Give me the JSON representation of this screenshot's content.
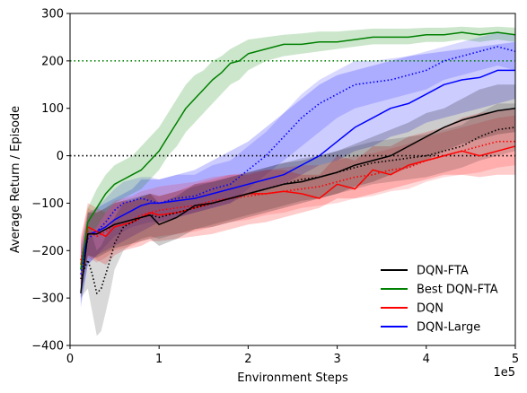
{
  "chart_data": {
    "type": "line",
    "title": "",
    "xlabel": "Environment Steps",
    "ylabel": "Average Return / Episode",
    "x_multiplier_label": "1e5",
    "xlim": [
      0,
      5
    ],
    "ylim": [
      -400,
      300
    ],
    "x_ticks": [
      0,
      1,
      2,
      3,
      4,
      5
    ],
    "x_tick_labels": [
      "0",
      "1",
      "2",
      "3",
      "4",
      "5"
    ],
    "y_ticks": [
      -400,
      -300,
      -200,
      -100,
      0,
      100,
      200,
      300
    ],
    "y_tick_labels": [
      "−400",
      "−300",
      "−200",
      "−100",
      "0",
      "100",
      "200",
      "300"
    ],
    "grid": false,
    "legend_position": "lower-right",
    "reference_lines": [
      {
        "y": 200,
        "color": "#008000",
        "style": "dotted"
      },
      {
        "y": 0,
        "color": "#000000",
        "style": "dotted"
      }
    ],
    "series": [
      {
        "name": "DQN-Large",
        "color": "#0000ff",
        "style": "solid",
        "band_opacity": 0.2,
        "in_legend": true,
        "x": [
          0.12,
          0.2,
          0.3,
          0.4,
          0.5,
          0.6,
          0.7,
          0.8,
          0.9,
          1.0,
          1.2,
          1.4,
          1.6,
          1.8,
          2.0,
          2.2,
          2.4,
          2.6,
          2.8,
          3.0,
          3.2,
          3.4,
          3.6,
          3.8,
          4.0,
          4.2,
          4.4,
          4.6,
          4.8,
          5.0
        ],
        "y": [
          -240,
          -165,
          -160,
          -150,
          -135,
          -125,
          -115,
          -105,
          -100,
          -100,
          -95,
          -90,
          -80,
          -70,
          -60,
          -50,
          -40,
          -20,
          0,
          30,
          60,
          80,
          100,
          110,
          130,
          150,
          160,
          165,
          180,
          180
        ],
        "lower": [
          -320,
          -230,
          -210,
          -200,
          -190,
          -180,
          -170,
          -160,
          -150,
          -140,
          -130,
          -120,
          -110,
          -100,
          -80,
          -70,
          -60,
          -40,
          -20,
          -10,
          10,
          20,
          40,
          50,
          70,
          80,
          90,
          100,
          110,
          120
        ],
        "upper": [
          -190,
          -120,
          -110,
          -100,
          -90,
          -80,
          -70,
          -50,
          -50,
          -50,
          -40,
          -30,
          -10,
          10,
          30,
          60,
          90,
          120,
          150,
          170,
          180,
          190,
          200,
          210,
          215,
          220,
          225,
          230,
          235,
          240
        ]
      },
      {
        "name": "",
        "color": "#0000ff",
        "style": "dotted",
        "band_opacity": 0.15,
        "in_legend": false,
        "x": [
          0.12,
          0.2,
          0.3,
          0.4,
          0.5,
          0.6,
          0.7,
          0.8,
          0.9,
          1.0,
          1.2,
          1.4,
          1.6,
          1.8,
          2.0,
          2.2,
          2.4,
          2.6,
          2.8,
          3.0,
          3.2,
          3.4,
          3.6,
          3.8,
          4.0,
          4.2,
          4.4,
          4.6,
          4.8,
          5.0
        ],
        "y": [
          -250,
          -175,
          -160,
          -140,
          -115,
          -100,
          -95,
          -90,
          -95,
          -100,
          -90,
          -85,
          -70,
          -60,
          -30,
          0,
          40,
          80,
          110,
          130,
          150,
          155,
          160,
          170,
          180,
          200,
          210,
          220,
          230,
          220
        ],
        "lower": [
          -310,
          -230,
          -210,
          -190,
          -170,
          -160,
          -150,
          -145,
          -140,
          -140,
          -130,
          -120,
          -110,
          -100,
          -70,
          -40,
          -10,
          20,
          50,
          80,
          100,
          110,
          120,
          130,
          140,
          160,
          170,
          180,
          190,
          180
        ],
        "upper": [
          -200,
          -130,
          -110,
          -90,
          -70,
          -55,
          -50,
          -45,
          -45,
          -50,
          -40,
          -40,
          -20,
          -10,
          20,
          50,
          90,
          130,
          160,
          180,
          200,
          200,
          205,
          210,
          220,
          230,
          240,
          250,
          260,
          255
        ]
      },
      {
        "name": "DQN",
        "color": "#ff0000",
        "style": "solid",
        "band_opacity": 0.2,
        "in_legend": true,
        "x": [
          0.12,
          0.2,
          0.3,
          0.4,
          0.5,
          0.6,
          0.7,
          0.8,
          0.9,
          1.0,
          1.2,
          1.4,
          1.6,
          1.8,
          2.0,
          2.2,
          2.4,
          2.6,
          2.8,
          3.0,
          3.2,
          3.4,
          3.6,
          3.8,
          4.0,
          4.2,
          4.4,
          4.6,
          4.8,
          5.0
        ],
        "y": [
          -230,
          -150,
          -160,
          -170,
          -150,
          -145,
          -140,
          -130,
          -120,
          -125,
          -120,
          -110,
          -100,
          -90,
          -80,
          -80,
          -75,
          -80,
          -90,
          -60,
          -70,
          -30,
          -40,
          -20,
          -10,
          0,
          10,
          0,
          10,
          20
        ],
        "lower": [
          -280,
          -210,
          -220,
          -230,
          -210,
          -200,
          -195,
          -190,
          -180,
          -180,
          -175,
          -170,
          -165,
          -155,
          -145,
          -140,
          -130,
          -120,
          -110,
          -90,
          -90,
          -80,
          -70,
          -60,
          -50,
          -40,
          -40,
          -45,
          -40,
          -40
        ],
        "upper": [
          -180,
          -100,
          -110,
          -120,
          -100,
          -95,
          -95,
          -90,
          -80,
          -85,
          -75,
          -60,
          -50,
          -40,
          -40,
          -30,
          -30,
          -40,
          -40,
          0,
          -10,
          20,
          20,
          40,
          50,
          60,
          80,
          90,
          95,
          100
        ]
      },
      {
        "name": "",
        "color": "#ff0000",
        "style": "dotted",
        "band_opacity": 0.15,
        "in_legend": false,
        "x": [
          0.12,
          0.2,
          0.3,
          0.4,
          0.5,
          0.6,
          0.7,
          0.8,
          0.9,
          1.0,
          1.2,
          1.4,
          1.6,
          1.8,
          2.0,
          2.2,
          2.4,
          2.6,
          2.8,
          3.0,
          3.2,
          3.4,
          3.6,
          3.8,
          4.0,
          4.2,
          4.4,
          4.6,
          4.8,
          5.0
        ],
        "y": [
          -220,
          -160,
          -170,
          -160,
          -145,
          -140,
          -135,
          -125,
          -120,
          -115,
          -110,
          -105,
          -95,
          -90,
          -85,
          -80,
          -75,
          -70,
          -65,
          -55,
          -45,
          -40,
          -30,
          -25,
          -10,
          0,
          10,
          20,
          30,
          30
        ],
        "lower": [
          -270,
          -215,
          -225,
          -215,
          -200,
          -195,
          -190,
          -180,
          -175,
          -170,
          -165,
          -160,
          -150,
          -140,
          -135,
          -125,
          -120,
          -110,
          -105,
          -100,
          -90,
          -85,
          -75,
          -70,
          -55,
          -45,
          -40,
          -35,
          -25,
          -20
        ],
        "upper": [
          -170,
          -110,
          -120,
          -110,
          -95,
          -90,
          -85,
          -75,
          -70,
          -65,
          -60,
          -55,
          -45,
          -40,
          -35,
          -30,
          -25,
          -20,
          -20,
          -10,
          0,
          5,
          15,
          25,
          40,
          50,
          60,
          70,
          80,
          85
        ]
      },
      {
        "name": "DQN-FTA",
        "color": "#000000",
        "style": "solid",
        "band_opacity": 0.2,
        "in_legend": true,
        "x": [
          0.12,
          0.2,
          0.3,
          0.4,
          0.5,
          0.6,
          0.7,
          0.8,
          0.9,
          1.0,
          1.2,
          1.4,
          1.6,
          1.8,
          2.0,
          2.2,
          2.4,
          2.6,
          2.8,
          3.0,
          3.2,
          3.4,
          3.6,
          3.8,
          4.0,
          4.2,
          4.4,
          4.6,
          4.8,
          5.0
        ],
        "y": [
          -290,
          -165,
          -165,
          -155,
          -145,
          -140,
          -135,
          -130,
          -125,
          -145,
          -130,
          -105,
          -100,
          -90,
          -80,
          -70,
          -60,
          -55,
          -45,
          -35,
          -20,
          -10,
          0,
          20,
          40,
          60,
          75,
          85,
          95,
          100
        ],
        "lower": [
          -300,
          -210,
          -215,
          -205,
          -195,
          -190,
          -185,
          -180,
          -175,
          -190,
          -175,
          -155,
          -150,
          -140,
          -130,
          -120,
          -110,
          -100,
          -90,
          -80,
          -65,
          -55,
          -40,
          -25,
          -10,
          10,
          25,
          35,
          45,
          50
        ],
        "upper": [
          -260,
          -120,
          -120,
          -110,
          -100,
          -95,
          -90,
          -85,
          -80,
          -100,
          -85,
          -60,
          -55,
          -45,
          -35,
          -25,
          -15,
          -10,
          0,
          10,
          25,
          40,
          55,
          70,
          90,
          100,
          120,
          140,
          150,
          150
        ]
      },
      {
        "name": "",
        "color": "#000000",
        "style": "dotted",
        "band_opacity": 0.15,
        "in_legend": false,
        "x": [
          0.12,
          0.2,
          0.25,
          0.3,
          0.35,
          0.4,
          0.45,
          0.5,
          0.6,
          0.7,
          0.8,
          0.9,
          1.0,
          1.2,
          1.4,
          1.6,
          1.8,
          2.0,
          2.2,
          2.4,
          2.6,
          2.8,
          3.0,
          3.2,
          3.4,
          3.6,
          3.8,
          4.0,
          4.2,
          4.4,
          4.6,
          4.8,
          5.0
        ],
        "y": [
          -260,
          -220,
          -250,
          -290,
          -280,
          -250,
          -220,
          -185,
          -150,
          -140,
          -130,
          -125,
          -130,
          -120,
          -110,
          -100,
          -90,
          -80,
          -70,
          -60,
          -50,
          -45,
          -35,
          -25,
          -15,
          -10,
          -5,
          0,
          10,
          20,
          40,
          55,
          60
        ],
        "lower": [
          -300,
          -280,
          -330,
          -380,
          -370,
          -330,
          -290,
          -240,
          -200,
          -185,
          -175,
          -170,
          -175,
          -165,
          -155,
          -145,
          -135,
          -125,
          -115,
          -105,
          -95,
          -90,
          -80,
          -70,
          -60,
          -55,
          -50,
          -45,
          -35,
          -25,
          -10,
          0,
          10
        ],
        "upper": [
          -220,
          -160,
          -170,
          -200,
          -190,
          -170,
          -150,
          -130,
          -100,
          -95,
          -85,
          -80,
          -85,
          -75,
          -65,
          -55,
          -45,
          -35,
          -25,
          -15,
          -5,
          0,
          10,
          20,
          30,
          35,
          40,
          45,
          55,
          65,
          90,
          110,
          110
        ]
      },
      {
        "name": "Best DQN-FTA",
        "color": "#008000",
        "style": "solid",
        "band_opacity": 0.2,
        "in_legend": true,
        "x": [
          0.12,
          0.2,
          0.3,
          0.4,
          0.5,
          0.6,
          0.7,
          0.8,
          0.9,
          1.0,
          1.1,
          1.2,
          1.3,
          1.4,
          1.5,
          1.6,
          1.7,
          1.8,
          1.9,
          2.0,
          2.2,
          2.4,
          2.6,
          2.8,
          3.0,
          3.2,
          3.4,
          3.6,
          3.8,
          4.0,
          4.2,
          4.4,
          4.6,
          4.8,
          5.0
        ],
        "y": [
          -240,
          -140,
          -110,
          -80,
          -60,
          -50,
          -40,
          -30,
          -10,
          10,
          40,
          70,
          100,
          120,
          140,
          160,
          175,
          195,
          200,
          215,
          225,
          235,
          235,
          240,
          240,
          245,
          250,
          250,
          250,
          255,
          255,
          260,
          255,
          260,
          255
        ],
        "lower": [
          -260,
          -170,
          -150,
          -120,
          -100,
          -90,
          -80,
          -70,
          -50,
          -30,
          0,
          20,
          50,
          70,
          90,
          110,
          130,
          150,
          160,
          180,
          200,
          210,
          215,
          220,
          225,
          230,
          235,
          235,
          235,
          240,
          240,
          245,
          240,
          245,
          240
        ],
        "upper": [
          -220,
          -110,
          -70,
          -40,
          -20,
          -10,
          0,
          20,
          40,
          60,
          90,
          120,
          150,
          170,
          180,
          200,
          210,
          225,
          235,
          245,
          250,
          255,
          258,
          262,
          262,
          265,
          268,
          268,
          268,
          270,
          270,
          272,
          270,
          272,
          270
        ]
      }
    ]
  }
}
